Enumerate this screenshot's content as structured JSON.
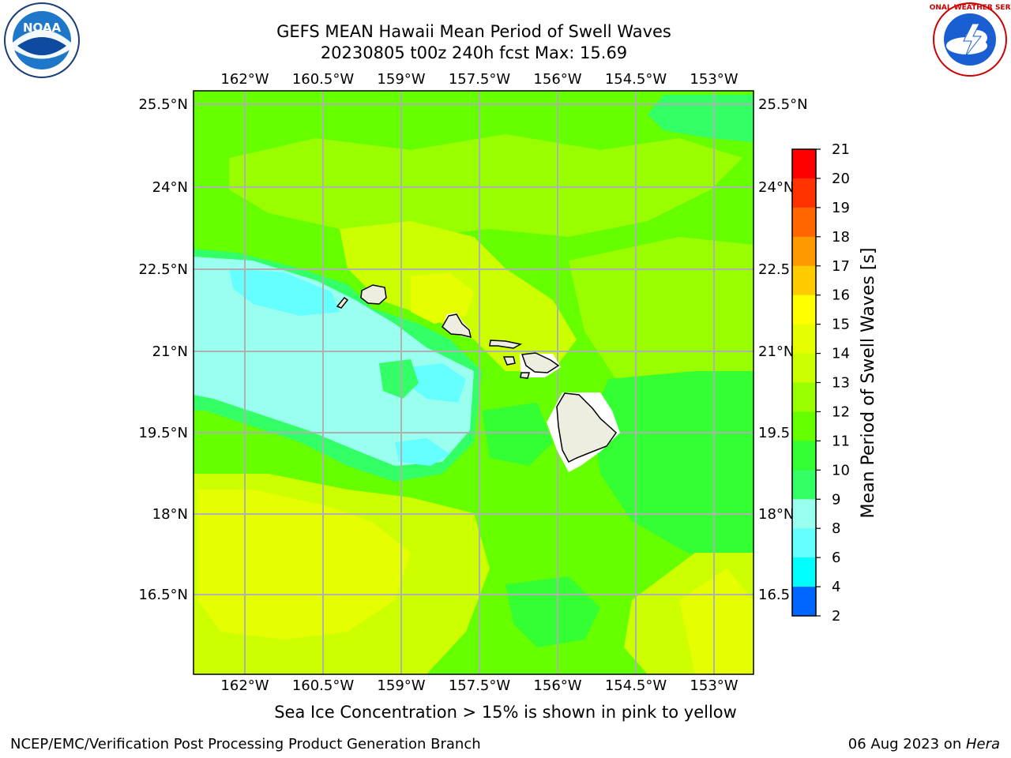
{
  "title": {
    "line1": "GEFS MEAN Hawaii Mean Period of Swell Waves",
    "line2": "20230805 t00z 240h fcst   Max: 15.69"
  },
  "map": {
    "lon_labels": [
      "162°W",
      "160.5°W",
      "159°W",
      "157.5°W",
      "156°W",
      "154.5°W",
      "153°W"
    ],
    "lat_labels": [
      "25.5°N",
      "24°N",
      "22.5°N",
      "21°N",
      "19.5°N",
      "18°N",
      "16.5°N"
    ],
    "lat_labels_right": [
      "25.5°N",
      "24°N",
      "22.5",
      "21°N",
      "19.5",
      "18°N",
      "16.5"
    ],
    "gridline_color": "#b0b0b0",
    "islands": [
      "Kauai",
      "Niihau",
      "Oahu",
      "Molokai",
      "Lanai",
      "Maui",
      "Kahoolawe",
      "Hawaii"
    ]
  },
  "colorbar": {
    "label": "Mean Period of Swell Waves [s]",
    "ticks": [
      "21",
      "20",
      "19",
      "18",
      "17",
      "16",
      "15",
      "14",
      "13",
      "12",
      "11",
      "10",
      "9",
      "8",
      "6",
      "4",
      "2"
    ],
    "colors": [
      "#ff0000",
      "#ff3300",
      "#ff6600",
      "#ff9900",
      "#ffcc00",
      "#ffff00",
      "#e6ff00",
      "#ccff00",
      "#99ff00",
      "#66ff00",
      "#33ff33",
      "#33ff66",
      "#99ffee",
      "#66ffff",
      "#00ffff",
      "#0066ff",
      "#0000ff"
    ]
  },
  "note": "Sea Ice Concentration > 15% is shown in pink to yellow",
  "footer": {
    "left": "NCEP/EMC/Verification Post Processing Product Generation Branch",
    "right_date": "06 Aug 2023 on ",
    "right_host": "Hera"
  },
  "logos": {
    "noaa": "NOAA",
    "nws": "NATIONAL WEATHER SERVICE"
  }
}
